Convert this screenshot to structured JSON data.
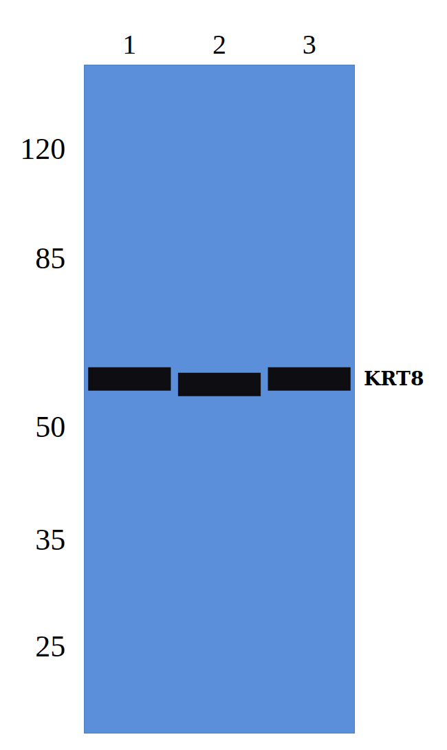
{
  "chart_data": {
    "type": "blot",
    "categories": [
      "1",
      "2",
      "3"
    ],
    "values": [
      58,
      57,
      58
    ],
    "band_label": "KRT8",
    "ylim": [
      19,
      156
    ],
    "yticks": [
      120,
      85,
      50,
      35,
      25
    ],
    "log": "y",
    "color": "#0d0d12"
  }
}
